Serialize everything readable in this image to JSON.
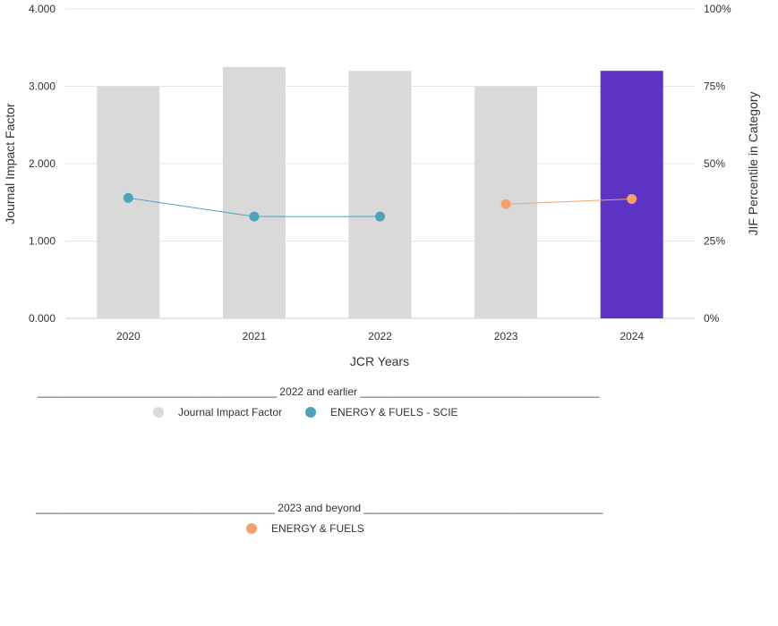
{
  "chart_data": {
    "type": "bar",
    "categories": [
      "2020",
      "2021",
      "2022",
      "2023",
      "2024"
    ],
    "xlabel": "JCR Years",
    "ylabel": "Journal Impact Factor",
    "y2label": "JIF Percentile in Category",
    "ylim": [
      0,
      4
    ],
    "y2lim": [
      0,
      100
    ],
    "yticks": [
      "0.000",
      "1.000",
      "2.000",
      "3.000",
      "4.000"
    ],
    "y2ticks": [
      "0%",
      "25%",
      "50%",
      "75%",
      "100%"
    ],
    "grid": true,
    "series": [
      {
        "name": "Journal Impact Factor",
        "kind": "bar",
        "values": [
          3.0,
          3.25,
          3.2,
          3.0,
          3.2
        ],
        "colors": [
          "#d9d9d9",
          "#d9d9d9",
          "#d9d9d9",
          "#d9d9d9",
          "#5c33c2"
        ]
      },
      {
        "name": "ENERGY & FUELS - SCIE",
        "kind": "line",
        "axis": "right",
        "values": [
          38.9,
          32.9,
          32.9,
          null,
          null
        ],
        "color": "#4fa3b8"
      },
      {
        "name": "ENERGY & FUELS",
        "kind": "line",
        "axis": "right",
        "values": [
          null,
          null,
          null,
          36.9,
          38.6
        ],
        "color": "#f4a06e"
      }
    ]
  },
  "legend": {
    "group1_label": "________________________________________ 2022 and earlier ________________________________________",
    "group1_items": [
      {
        "label": "Journal Impact Factor",
        "color": "#d9d9d9"
      },
      {
        "label": "ENERGY & FUELS - SCIE",
        "color": "#4fa3b8"
      }
    ],
    "group2_label": "________________________________________ 2023 and beyond ________________________________________",
    "group2_items": [
      {
        "label": "ENERGY & FUELS",
        "color": "#f4a06e"
      }
    ]
  }
}
